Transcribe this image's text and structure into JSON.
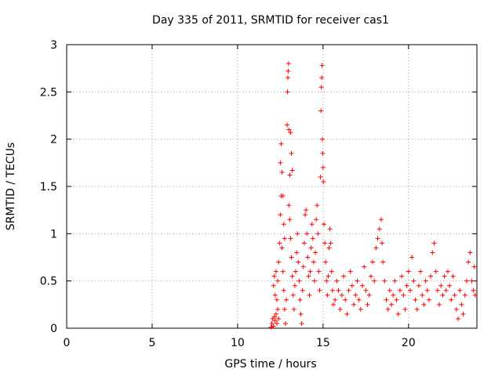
{
  "chart_data": {
    "type": "scatter",
    "title": "Day 335 of 2011, SRMTID for receiver cas1",
    "xlabel": "GPS time / hours",
    "ylabel": "SRMTID / TECUs",
    "xlim": [
      0,
      24
    ],
    "ylim": [
      0,
      3
    ],
    "xticks": [
      0,
      5,
      10,
      15,
      20
    ],
    "yticks": [
      0,
      0.5,
      1,
      1.5,
      2,
      2.5,
      3
    ],
    "xtick_labels": [
      "0",
      "5",
      "10",
      "15",
      "20"
    ],
    "ytick_labels": [
      "0",
      "0.5",
      "1",
      "1.5",
      "2",
      "2.5",
      "3"
    ],
    "grid": true,
    "marker": "+",
    "color": "#ff0000",
    "series": [
      {
        "name": "SRMTID cas1",
        "points": [
          [
            11.95,
            0.01
          ],
          [
            12.0,
            0.05
          ],
          [
            12.05,
            0.1
          ],
          [
            12.1,
            0.02
          ],
          [
            12.15,
            0.12
          ],
          [
            12.2,
            0.08
          ],
          [
            12.25,
            0.15
          ],
          [
            12.3,
            0.05
          ],
          [
            12.35,
            0.2
          ],
          [
            12.4,
            0.1
          ],
          [
            12.1,
            0.45
          ],
          [
            12.15,
            0.55
          ],
          [
            12.2,
            0.35
          ],
          [
            12.25,
            0.6
          ],
          [
            12.3,
            0.3
          ],
          [
            12.35,
            0.5
          ],
          [
            12.4,
            0.7
          ],
          [
            12.45,
            0.9
          ],
          [
            12.5,
            1.2
          ],
          [
            12.55,
            1.4
          ],
          [
            12.5,
            1.75
          ],
          [
            12.55,
            1.95
          ],
          [
            12.6,
            1.65
          ],
          [
            12.65,
            1.4
          ],
          [
            12.7,
            1.1
          ],
          [
            12.75,
            0.95
          ],
          [
            12.6,
            0.85
          ],
          [
            12.65,
            0.6
          ],
          [
            12.7,
            0.4
          ],
          [
            12.75,
            0.2
          ],
          [
            12.8,
            0.05
          ],
          [
            12.85,
            0.3
          ],
          [
            12.9,
            2.15
          ],
          [
            12.92,
            2.5
          ],
          [
            12.94,
            2.65
          ],
          [
            12.96,
            2.72
          ],
          [
            12.98,
            2.8
          ],
          [
            13.0,
            2.1
          ],
          [
            13.05,
            1.62
          ],
          [
            13.1,
            2.07
          ],
          [
            13.15,
            1.85
          ],
          [
            13.2,
            1.67
          ],
          [
            13.0,
            1.3
          ],
          [
            13.05,
            1.15
          ],
          [
            13.1,
            0.95
          ],
          [
            13.15,
            0.75
          ],
          [
            13.2,
            0.55
          ],
          [
            13.25,
            0.35
          ],
          [
            13.3,
            0.2
          ],
          [
            13.35,
            0.45
          ],
          [
            13.4,
            0.6
          ],
          [
            13.45,
            0.8
          ],
          [
            13.5,
            1.0
          ],
          [
            13.55,
            0.7
          ],
          [
            13.6,
            0.5
          ],
          [
            13.65,
            0.3
          ],
          [
            13.7,
            0.15
          ],
          [
            13.75,
            0.05
          ],
          [
            13.8,
            0.4
          ],
          [
            13.85,
            0.65
          ],
          [
            13.9,
            0.9
          ],
          [
            13.95,
            1.2
          ],
          [
            14.0,
            1.25
          ],
          [
            14.05,
            1.0
          ],
          [
            14.1,
            0.75
          ],
          [
            14.15,
            0.55
          ],
          [
            14.2,
            0.35
          ],
          [
            14.25,
            0.6
          ],
          [
            14.3,
            0.85
          ],
          [
            14.35,
            1.1
          ],
          [
            14.4,
            0.95
          ],
          [
            14.45,
            0.7
          ],
          [
            14.5,
            0.5
          ],
          [
            14.55,
            0.8
          ],
          [
            14.6,
            1.15
          ],
          [
            14.65,
            1.3
          ],
          [
            14.7,
            1.0
          ],
          [
            14.75,
            0.6
          ],
          [
            14.8,
            0.4
          ],
          [
            14.85,
            1.6
          ],
          [
            14.88,
            2.3
          ],
          [
            14.9,
            2.55
          ],
          [
            14.92,
            2.65
          ],
          [
            14.94,
            2.78
          ],
          [
            14.96,
            2.0
          ],
          [
            14.98,
            1.85
          ],
          [
            15.0,
            1.7
          ],
          [
            15.02,
            1.55
          ],
          [
            15.05,
            1.1
          ],
          [
            15.1,
            0.9
          ],
          [
            15.15,
            0.7
          ],
          [
            15.2,
            0.5
          ],
          [
            15.25,
            0.35
          ],
          [
            15.3,
            0.55
          ],
          [
            15.35,
            0.85
          ],
          [
            15.4,
            1.05
          ],
          [
            15.45,
            0.9
          ],
          [
            15.5,
            0.6
          ],
          [
            15.55,
            0.4
          ],
          [
            15.6,
            0.25
          ],
          [
            15.7,
            0.3
          ],
          [
            15.8,
            0.5
          ],
          [
            15.9,
            0.4
          ],
          [
            16.0,
            0.2
          ],
          [
            16.1,
            0.35
          ],
          [
            16.2,
            0.55
          ],
          [
            16.3,
            0.3
          ],
          [
            16.4,
            0.15
          ],
          [
            16.5,
            0.4
          ],
          [
            16.6,
            0.6
          ],
          [
            16.7,
            0.45
          ],
          [
            16.8,
            0.25
          ],
          [
            16.9,
            0.35
          ],
          [
            17.0,
            0.5
          ],
          [
            17.1,
            0.3
          ],
          [
            17.2,
            0.2
          ],
          [
            17.3,
            0.45
          ],
          [
            17.4,
            0.65
          ],
          [
            17.5,
            0.4
          ],
          [
            17.6,
            0.25
          ],
          [
            17.7,
            0.35
          ],
          [
            17.8,
            0.55
          ],
          [
            17.9,
            0.7
          ],
          [
            18.0,
            0.5
          ],
          [
            18.1,
            0.85
          ],
          [
            18.2,
            0.95
          ],
          [
            18.3,
            1.05
          ],
          [
            18.4,
            1.15
          ],
          [
            18.45,
            0.9
          ],
          [
            18.5,
            0.7
          ],
          [
            18.6,
            0.5
          ],
          [
            18.7,
            0.3
          ],
          [
            18.8,
            0.2
          ],
          [
            18.9,
            0.4
          ],
          [
            19.0,
            0.25
          ],
          [
            19.1,
            0.35
          ],
          [
            19.2,
            0.5
          ],
          [
            19.3,
            0.3
          ],
          [
            19.4,
            0.15
          ],
          [
            19.5,
            0.4
          ],
          [
            19.6,
            0.55
          ],
          [
            19.7,
            0.35
          ],
          [
            19.8,
            0.2
          ],
          [
            19.9,
            0.45
          ],
          [
            20.0,
            0.6
          ],
          [
            20.1,
            0.4
          ],
          [
            20.2,
            0.75
          ],
          [
            20.3,
            0.5
          ],
          [
            20.4,
            0.3
          ],
          [
            20.5,
            0.2
          ],
          [
            20.6,
            0.45
          ],
          [
            20.7,
            0.6
          ],
          [
            20.8,
            0.35
          ],
          [
            20.9,
            0.25
          ],
          [
            21.0,
            0.5
          ],
          [
            21.1,
            0.4
          ],
          [
            21.2,
            0.3
          ],
          [
            21.3,
            0.55
          ],
          [
            21.4,
            0.8
          ],
          [
            21.5,
            0.9
          ],
          [
            21.6,
            0.6
          ],
          [
            21.7,
            0.4
          ],
          [
            21.8,
            0.25
          ],
          [
            21.9,
            0.45
          ],
          [
            22.0,
            0.35
          ],
          [
            22.1,
            0.55
          ],
          [
            22.2,
            0.4
          ],
          [
            22.3,
            0.6
          ],
          [
            22.4,
            0.45
          ],
          [
            22.5,
            0.3
          ],
          [
            22.6,
            0.55
          ],
          [
            22.7,
            0.35
          ],
          [
            22.8,
            0.2
          ],
          [
            22.9,
            0.1
          ],
          [
            23.0,
            0.4
          ],
          [
            23.1,
            0.25
          ],
          [
            23.2,
            0.15
          ],
          [
            23.3,
            0.35
          ],
          [
            23.4,
            0.5
          ],
          [
            23.5,
            0.7
          ],
          [
            23.6,
            0.8
          ],
          [
            23.7,
            0.5
          ],
          [
            23.8,
            0.4
          ],
          [
            23.85,
            0.65
          ],
          [
            23.9,
            0.35
          ]
        ]
      }
    ]
  }
}
